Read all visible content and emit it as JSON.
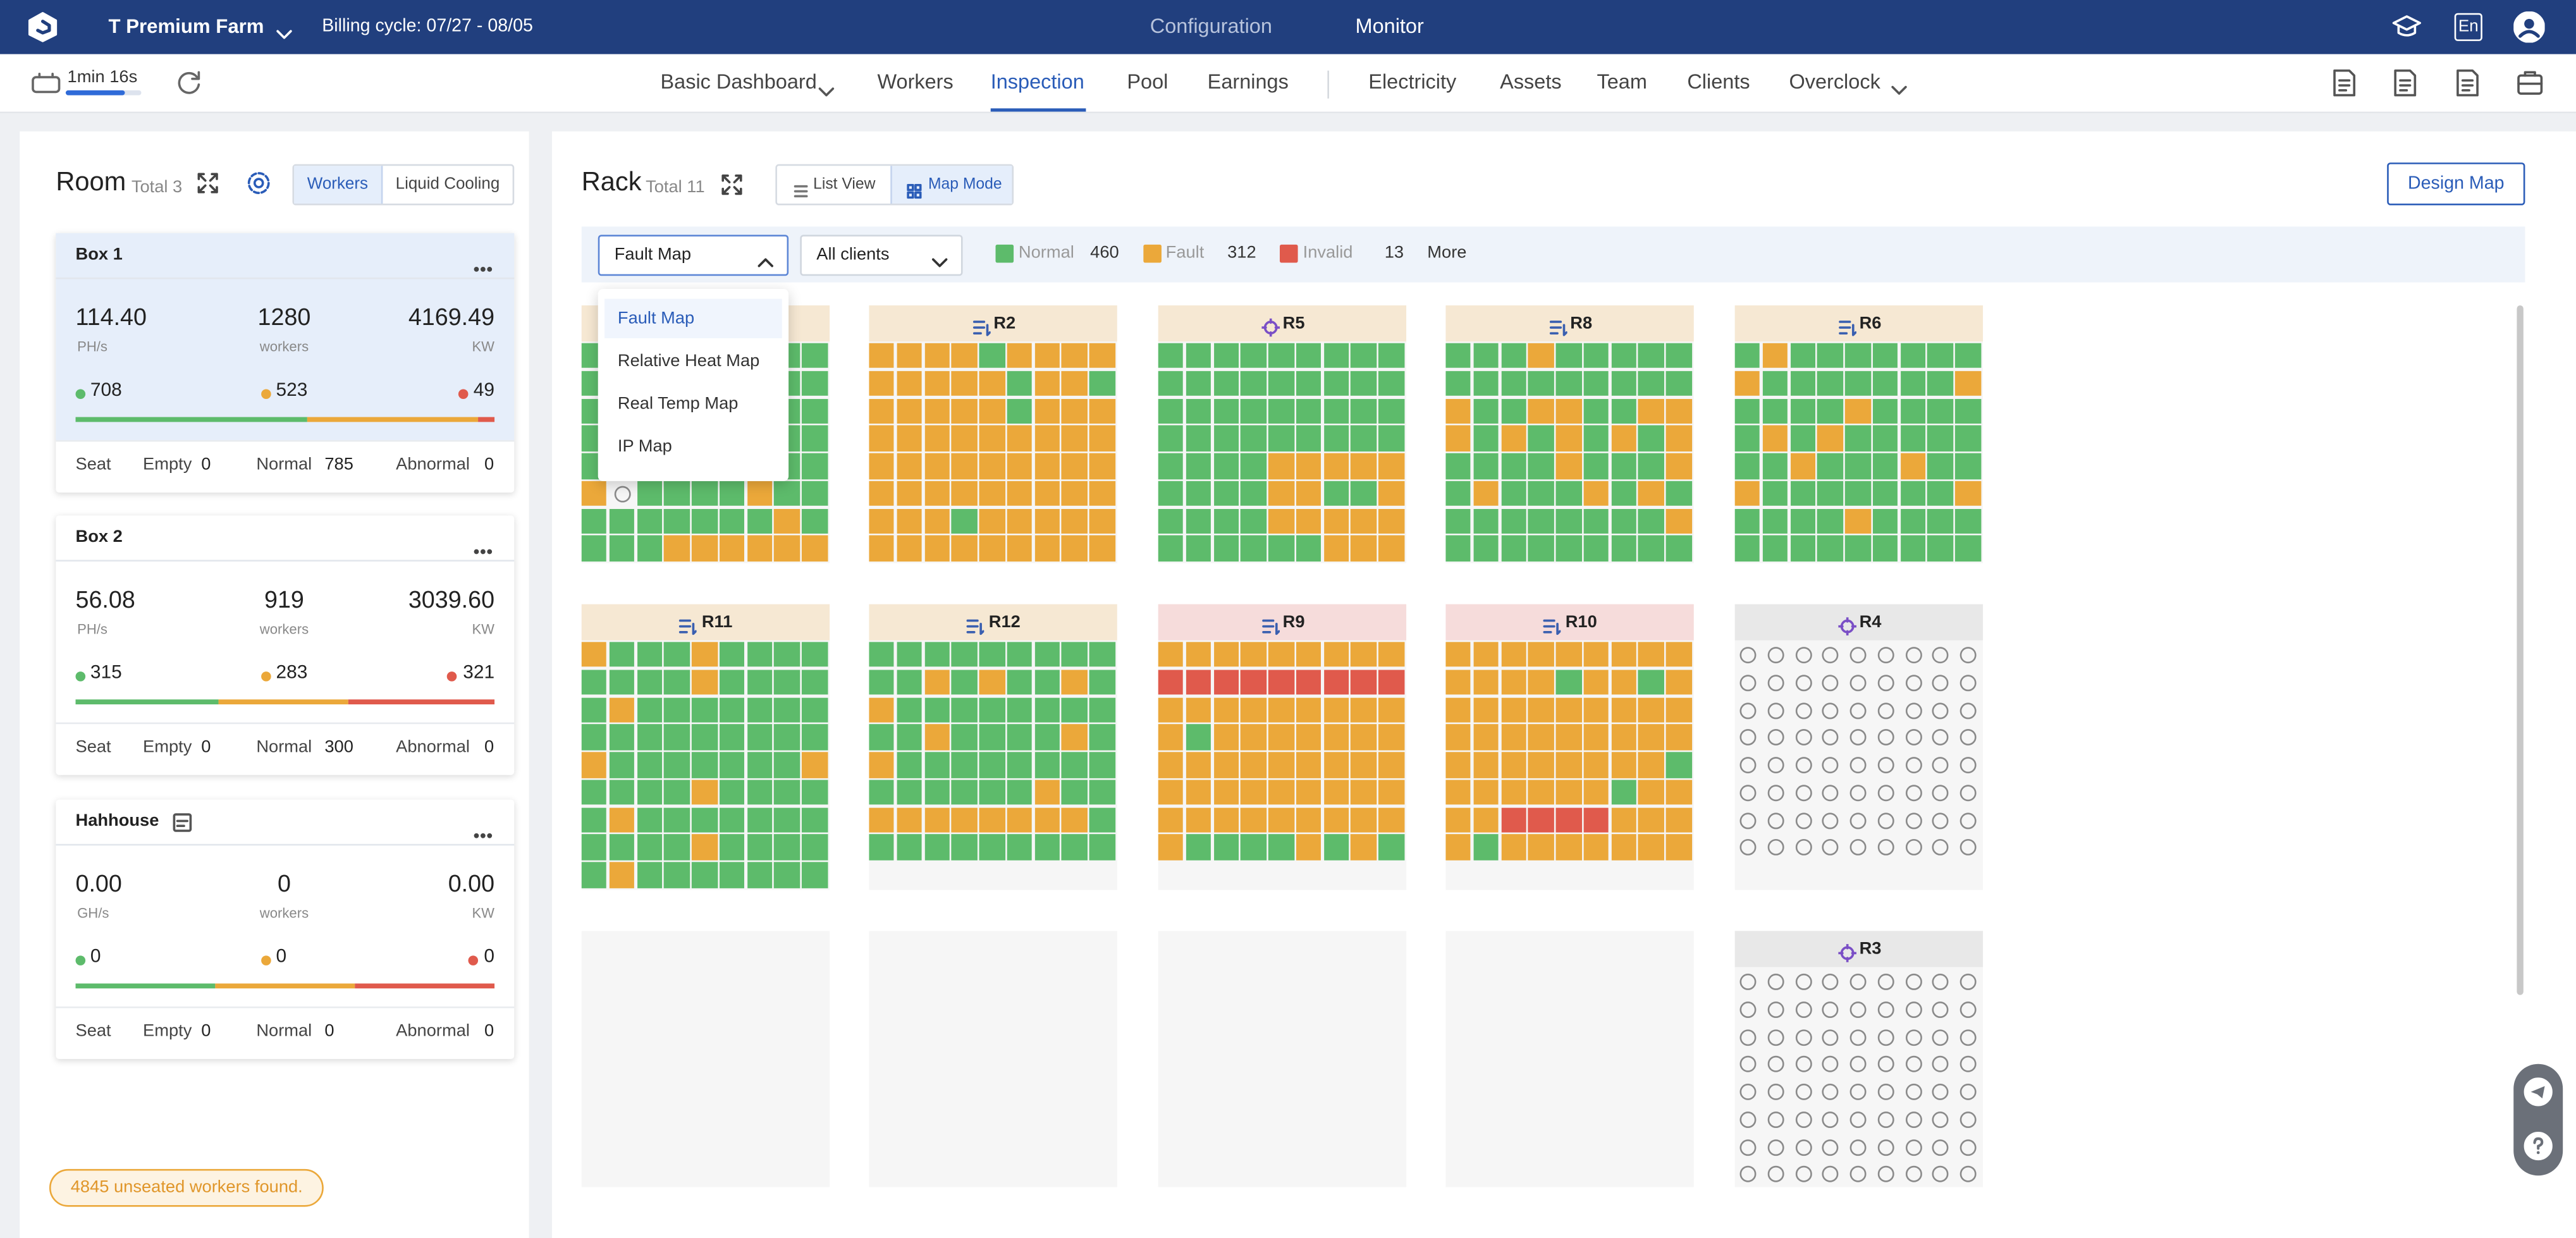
{
  "header": {
    "brand": "T Premium Farm",
    "billing": "Billing cycle: 07/27 - 08/05",
    "tabs": [
      "Configuration",
      "Monitor"
    ],
    "language": "En"
  },
  "toolbar": {
    "timer": "1min 16s",
    "nav": [
      "Basic Dashboard",
      "Workers",
      "Inspection",
      "Pool",
      "Earnings",
      "Electricity",
      "Assets",
      "Team",
      "Clients",
      "Overclock"
    ]
  },
  "room": {
    "title": "Room",
    "total": "Total 3",
    "toggle": [
      "Workers",
      "Liquid Cooling"
    ],
    "boxes": [
      {
        "name": "Box 1",
        "metrics": [
          {
            "value": "114.40",
            "unit": "PH/s"
          },
          {
            "value": "1280",
            "unit": "workers"
          },
          {
            "value": "4169.49",
            "unit": "KW"
          }
        ],
        "status": [
          708,
          523,
          49
        ],
        "seat": "Seat",
        "empty": [
          "Empty",
          0
        ],
        "normal": [
          "Normal",
          785
        ],
        "abnormal": [
          "Abnormal",
          0
        ]
      },
      {
        "name": "Box 2",
        "metrics": [
          {
            "value": "56.08",
            "unit": "PH/s"
          },
          {
            "value": "919",
            "unit": "workers"
          },
          {
            "value": "3039.60",
            "unit": "KW"
          }
        ],
        "status": [
          315,
          283,
          321
        ],
        "seat": "Seat",
        "empty": [
          "Empty",
          0
        ],
        "normal": [
          "Normal",
          300
        ],
        "abnormal": [
          "Abnormal",
          0
        ]
      },
      {
        "name": "Hahhouse",
        "metrics": [
          {
            "value": "0.00",
            "unit": "GH/s"
          },
          {
            "value": "0",
            "unit": "workers"
          },
          {
            "value": "0.00",
            "unit": "KW"
          }
        ],
        "status": [
          0,
          0,
          0
        ],
        "seat": "Seat",
        "empty": [
          "Empty",
          0
        ],
        "normal": [
          "Normal",
          0
        ],
        "abnormal": [
          "Abnormal",
          0
        ]
      }
    ],
    "notice": "4845 unseated workers found."
  },
  "rack": {
    "title": "Rack",
    "total": "Total 11",
    "views": [
      "List View",
      "Map Mode"
    ],
    "design": "Design Map",
    "map_select": "Fault Map",
    "client_select": "All clients",
    "legend": [
      {
        "label": "Normal",
        "count": 460,
        "color": "#5dbb6b"
      },
      {
        "label": "Fault",
        "count": 312,
        "color": "#eba83a"
      },
      {
        "label": "Invalid",
        "count": 13,
        "color": "#e05a4c"
      }
    ],
    "more": "More",
    "menu": [
      "Fault Map",
      "Relative Heat Map",
      "Real Temp Map",
      "IP Map"
    ],
    "racks": [
      {
        "name": "R2",
        "color": "#f6e8d3"
      },
      {
        "name": "R5",
        "color": "#f6e8d3"
      },
      {
        "name": "R8",
        "color": "#f6e8d3"
      },
      {
        "name": "R6",
        "color": "#f6e8d3"
      },
      {
        "name": "R11",
        "color": "#f6e8d3"
      },
      {
        "name": "R12",
        "color": "#f6e8d3"
      },
      {
        "name": "R9",
        "color": "#f6dcdb"
      },
      {
        "name": "R10",
        "color": "#f6dcdb"
      },
      {
        "name": "R4",
        "color": "#e8e8e8"
      },
      {
        "name": "R3",
        "color": "#e8e8e8"
      }
    ]
  }
}
